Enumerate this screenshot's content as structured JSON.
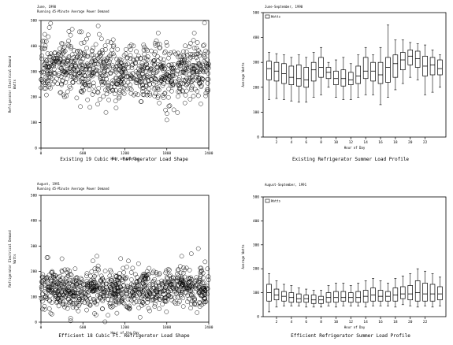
{
  "chart_data": [
    {
      "type": "scatter",
      "title": "June, 1990",
      "subtitle": "Running 45-Minute Average Power Demand",
      "caption": "Existing 19 Cubic Ft. Refrigerator Load Shape",
      "xlabel": "Hour of the Day",
      "ylabel": "Refrigerator Electrical Demand",
      "ylabel2": "Watts",
      "xlim": [
        0,
        2400
      ],
      "ylim": [
        0,
        500
      ],
      "xticks": [
        "0",
        "600",
        "1200",
        "1800",
        "2400"
      ],
      "yticks": [
        "0",
        "100",
        "200",
        "300",
        "400",
        "500"
      ],
      "marker": "open-circle",
      "band": {
        "low": 230,
        "high": 380,
        "sd": 55,
        "n": 900
      },
      "outliers": [
        [
          1800,
          110
        ],
        [
          1900,
          150
        ],
        [
          700,
          160
        ]
      ]
    },
    {
      "type": "box",
      "title": "June-September, 1990",
      "legend": "Watts",
      "caption": "Existing Refrigerator Summer Load Profile",
      "xlabel": "Hour of Day",
      "ylabel": "Average Watts",
      "ylim": [
        0,
        500
      ],
      "yticks": [
        "0",
        "100",
        "200",
        "300",
        "400",
        "500"
      ],
      "xticks": [
        "2",
        "4",
        "6",
        "8",
        "10",
        "12",
        "14",
        "16",
        "18",
        "20",
        "22"
      ],
      "boxes": [
        {
          "hour": 1,
          "min": 150,
          "q1": 230,
          "med": 275,
          "q3": 305,
          "max": 340
        },
        {
          "hour": 2,
          "min": 155,
          "q1": 225,
          "med": 265,
          "q3": 300,
          "max": 335
        },
        {
          "hour": 3,
          "min": 150,
          "q1": 215,
          "med": 255,
          "q3": 295,
          "max": 330
        },
        {
          "hour": 4,
          "min": 145,
          "q1": 210,
          "med": 240,
          "q3": 285,
          "max": 320
        },
        {
          "hour": 5,
          "min": 140,
          "q1": 205,
          "med": 235,
          "q3": 290,
          "max": 330
        },
        {
          "hour": 6,
          "min": 140,
          "q1": 200,
          "med": 230,
          "q3": 280,
          "max": 320
        },
        {
          "hour": 7,
          "min": 160,
          "q1": 225,
          "med": 270,
          "q3": 300,
          "max": 340
        },
        {
          "hour": 8,
          "min": 170,
          "q1": 240,
          "med": 280,
          "q3": 320,
          "max": 360
        },
        {
          "hour": 9,
          "min": 200,
          "q1": 235,
          "med": 260,
          "q3": 280,
          "max": 300
        },
        {
          "hour": 10,
          "min": 160,
          "q1": 210,
          "med": 235,
          "q3": 265,
          "max": 310
        },
        {
          "hour": 11,
          "min": 150,
          "q1": 205,
          "med": 235,
          "q3": 270,
          "max": 320
        },
        {
          "hour": 12,
          "min": 150,
          "q1": 210,
          "med": 230,
          "q3": 260,
          "max": 295
        },
        {
          "hour": 13,
          "min": 160,
          "q1": 215,
          "med": 245,
          "q3": 285,
          "max": 330
        },
        {
          "hour": 14,
          "min": 170,
          "q1": 235,
          "med": 265,
          "q3": 320,
          "max": 360
        },
        {
          "hour": 15,
          "min": 170,
          "q1": 225,
          "med": 265,
          "q3": 300,
          "max": 330
        },
        {
          "hour": 16,
          "min": 130,
          "q1": 215,
          "med": 250,
          "q3": 300,
          "max": 360
        },
        {
          "hour": 17,
          "min": 160,
          "q1": 220,
          "med": 280,
          "q3": 320,
          "max": 450
        },
        {
          "hour": 18,
          "min": 190,
          "q1": 240,
          "med": 295,
          "q3": 330,
          "max": 390
        },
        {
          "hour": 19,
          "min": 215,
          "q1": 270,
          "med": 310,
          "q3": 340,
          "max": 390
        },
        {
          "hour": 20,
          "min": 240,
          "q1": 290,
          "med": 325,
          "q3": 350,
          "max": 380
        },
        {
          "hour": 21,
          "min": 230,
          "q1": 280,
          "med": 315,
          "q3": 345,
          "max": 375
        },
        {
          "hour": 22,
          "min": 170,
          "q1": 245,
          "med": 285,
          "q3": 325,
          "max": 370
        },
        {
          "hour": 23,
          "min": 180,
          "q1": 250,
          "med": 290,
          "q3": 320,
          "max": 350
        },
        {
          "hour": 24,
          "min": 200,
          "q1": 250,
          "med": 275,
          "q3": 310,
          "max": 330
        }
      ]
    },
    {
      "type": "scatter",
      "title": "August, 1991",
      "subtitle": "Running 45-Minute Average Power Demand",
      "caption": "Efficient 18 Cubic Ft. Refrigerator Load Shape",
      "xlabel": "Hour of the Day",
      "ylabel": "Refrigerator Electrical Demand",
      "ylabel2": "Watts",
      "xlim": [
        0,
        2400
      ],
      "ylim": [
        0,
        500
      ],
      "xticks": [
        "0",
        "600",
        "1200",
        "1800",
        "2400"
      ],
      "yticks": [
        "0",
        "100",
        "200",
        "300",
        "400",
        "500"
      ],
      "marker": "open-circle",
      "band": {
        "low": 80,
        "high": 180,
        "sd": 40,
        "n": 900
      },
      "outliers": [
        [
          100,
          255
        ],
        [
          300,
          250
        ],
        [
          800,
          260
        ],
        [
          2150,
          270
        ],
        [
          2250,
          290
        ]
      ]
    },
    {
      "type": "box",
      "title": "August-September, 1991",
      "legend": "Watts",
      "caption": "Efficient Refrigerator Summer Load Profile",
      "xlabel": "Hour of Day",
      "ylabel": "Average Watts",
      "ylim": [
        0,
        500
      ],
      "yticks": [
        "0",
        "100",
        "200",
        "300",
        "400",
        "500"
      ],
      "xticks": [
        "2",
        "4",
        "6",
        "8",
        "10",
        "12",
        "14",
        "16",
        "18",
        "20",
        "22"
      ],
      "boxes": [
        {
          "hour": 1,
          "min": 20,
          "q1": 65,
          "med": 100,
          "q3": 135,
          "max": 180
        },
        {
          "hour": 2,
          "min": 40,
          "q1": 70,
          "med": 90,
          "q3": 115,
          "max": 150
        },
        {
          "hour": 3,
          "min": 45,
          "q1": 65,
          "med": 85,
          "q3": 105,
          "max": 135
        },
        {
          "hour": 4,
          "min": 45,
          "q1": 60,
          "med": 80,
          "q3": 100,
          "max": 130
        },
        {
          "hour": 5,
          "min": 45,
          "q1": 60,
          "med": 75,
          "q3": 95,
          "max": 120
        },
        {
          "hour": 6,
          "min": 40,
          "q1": 60,
          "med": 75,
          "q3": 90,
          "max": 115
        },
        {
          "hour": 7,
          "min": 40,
          "q1": 55,
          "med": 70,
          "q3": 90,
          "max": 110
        },
        {
          "hour": 8,
          "min": 40,
          "q1": 55,
          "med": 70,
          "q3": 85,
          "max": 110
        },
        {
          "hour": 9,
          "min": 45,
          "q1": 60,
          "med": 80,
          "q3": 100,
          "max": 130
        },
        {
          "hour": 10,
          "min": 40,
          "q1": 60,
          "med": 80,
          "q3": 105,
          "max": 140
        },
        {
          "hour": 11,
          "min": 45,
          "q1": 65,
          "med": 80,
          "q3": 105,
          "max": 140
        },
        {
          "hour": 12,
          "min": 45,
          "q1": 60,
          "med": 80,
          "q3": 100,
          "max": 130
        },
        {
          "hour": 13,
          "min": 45,
          "q1": 60,
          "med": 80,
          "q3": 105,
          "max": 140
        },
        {
          "hour": 14,
          "min": 40,
          "q1": 60,
          "med": 85,
          "q3": 110,
          "max": 150
        },
        {
          "hour": 15,
          "min": 45,
          "q1": 65,
          "med": 90,
          "q3": 120,
          "max": 160
        },
        {
          "hour": 16,
          "min": 45,
          "q1": 65,
          "med": 85,
          "q3": 110,
          "max": 150
        },
        {
          "hour": 17,
          "min": 45,
          "q1": 65,
          "med": 85,
          "q3": 105,
          "max": 140
        },
        {
          "hour": 18,
          "min": 40,
          "q1": 65,
          "med": 90,
          "q3": 120,
          "max": 160
        },
        {
          "hour": 19,
          "min": 50,
          "q1": 75,
          "med": 95,
          "q3": 125,
          "max": 170
        },
        {
          "hour": 20,
          "min": 45,
          "q1": 70,
          "med": 95,
          "q3": 130,
          "max": 180
        },
        {
          "hour": 21,
          "min": 40,
          "q1": 65,
          "med": 100,
          "q3": 150,
          "max": 200
        },
        {
          "hour": 22,
          "min": 45,
          "q1": 65,
          "med": 95,
          "q3": 140,
          "max": 190
        },
        {
          "hour": 23,
          "min": 40,
          "q1": 65,
          "med": 95,
          "q3": 135,
          "max": 180
        },
        {
          "hour": 24,
          "min": 45,
          "q1": 70,
          "med": 95,
          "q3": 125,
          "max": 165
        }
      ]
    }
  ]
}
